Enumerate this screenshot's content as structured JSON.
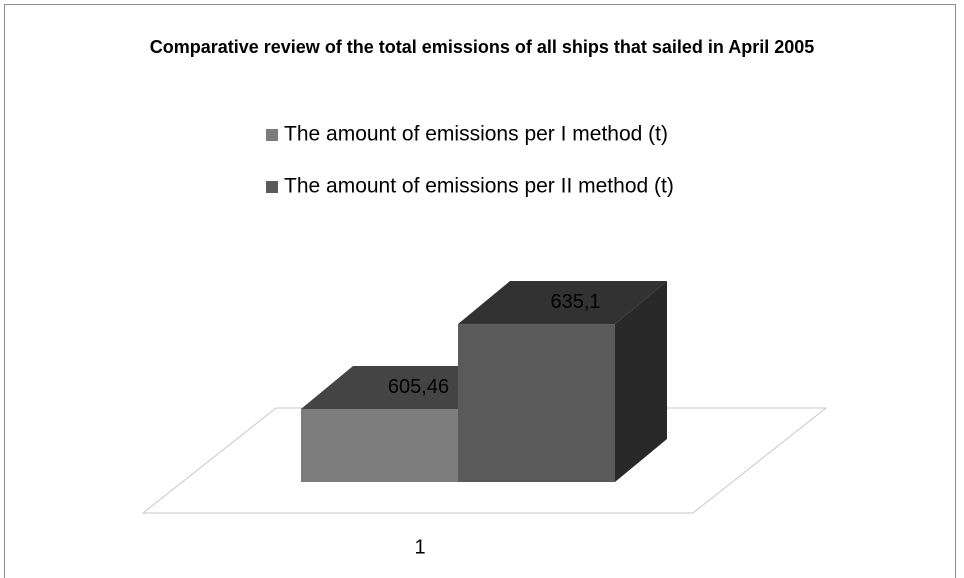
{
  "chart_data": {
    "type": "bar3d",
    "title": "Comparative review of the total emissions of all ships that sailed in April 2005",
    "categories": [
      "1"
    ],
    "series": [
      {
        "name": "The amount of emissions per I method (t)",
        "color": "#7c7c7c",
        "values": [
          605.46
        ],
        "value_labels": [
          "605,46"
        ]
      },
      {
        "name": "The amount of emissions per II method (t)",
        "color": "#5a5a5a",
        "values": [
          635.1
        ],
        "value_labels": [
          "635,1"
        ]
      }
    ],
    "ylim": [
      580,
      640
    ],
    "legend": "top"
  }
}
